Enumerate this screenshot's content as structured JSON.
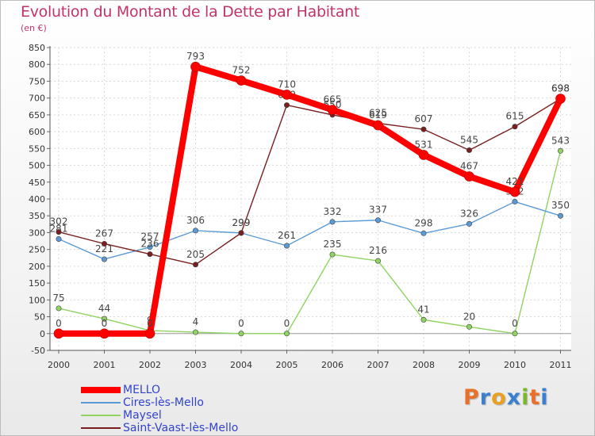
{
  "chart_data": {
    "type": "line",
    "title": "Evolution du Montant de la Dette par Habitant",
    "subtitle": "(en €)",
    "x": [
      "2000",
      "2001",
      "2002",
      "2003",
      "2004",
      "2005",
      "2006",
      "2007",
      "2008",
      "2009",
      "2010",
      "2011"
    ],
    "ylim": [
      -50,
      850
    ],
    "yticks": [
      -50,
      0,
      50,
      100,
      150,
      200,
      250,
      300,
      350,
      400,
      450,
      500,
      550,
      600,
      650,
      700,
      750,
      800,
      850
    ],
    "grid": true,
    "legend_position": "bottom-left",
    "series": [
      {
        "name": "MELLO",
        "color": "#ff0000",
        "values": [
          0,
          0,
          0,
          793,
          752,
          710,
          665,
          619,
          531,
          467,
          421,
          698
        ],
        "labels": [
          "0",
          "0",
          "0",
          "793",
          "752",
          "710",
          "665",
          "619",
          "531",
          "467",
          "421",
          "698"
        ]
      },
      {
        "name": "Cires-lès-Mello",
        "color": "#5b9bd5",
        "values": [
          281,
          221,
          257,
          306,
          299,
          261,
          332,
          337,
          298,
          326,
          392,
          350
        ],
        "labels": [
          "281",
          "221",
          "257",
          "306",
          "299",
          "261",
          "332",
          "337",
          "298",
          "326",
          "392",
          "350"
        ]
      },
      {
        "name": "Maysel",
        "color": "#8fd461",
        "values": [
          75,
          44,
          9,
          4,
          0,
          0,
          235,
          216,
          41,
          20,
          0,
          543
        ],
        "labels": [
          "75",
          "44",
          "9",
          "4",
          "0",
          "0",
          "235",
          "216",
          "41",
          "20",
          "0",
          "543"
        ]
      },
      {
        "name": "Saint-Vaast-lès-Mello",
        "color": "#7a1f1f",
        "values": [
          302,
          267,
          236,
          205,
          299,
          679,
          650,
          625,
          607,
          545,
          615,
          698
        ],
        "labels": [
          "302",
          "267",
          "236",
          "205",
          "299",
          "679",
          "650",
          "625",
          "607",
          "545",
          "615",
          "698"
        ]
      }
    ]
  },
  "logo": {
    "letters": [
      "P",
      "r",
      "o",
      "x",
      "i",
      "t",
      "i"
    ],
    "colors": [
      "#e8702a",
      "#3a7fd0",
      "#e8a020",
      "#3a7fd0",
      "#7cb82f",
      "#e8702a",
      "#3a7fd0"
    ]
  }
}
